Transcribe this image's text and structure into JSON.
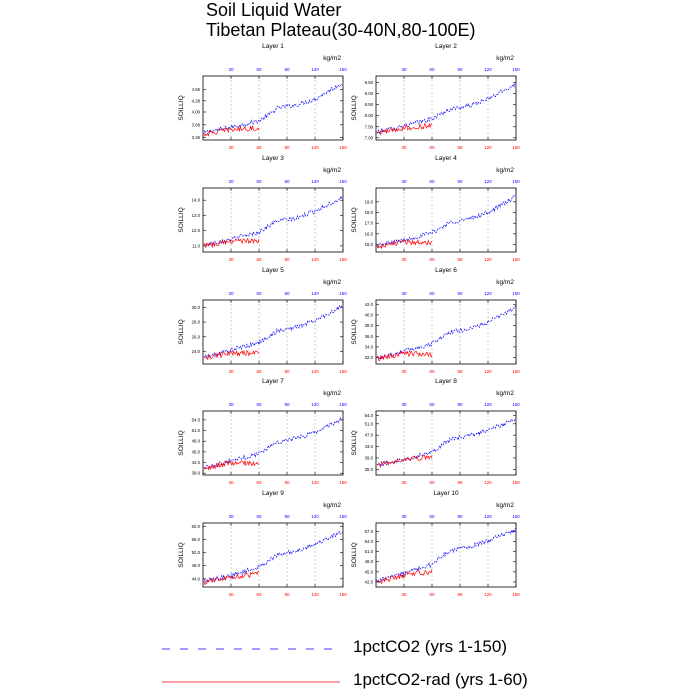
{
  "figure": {
    "title_line1": "Soil Liquid Water",
    "title_line2": "Tibetan Plateau(30-40N,80-100E)"
  },
  "colors": {
    "series1": "#0000ff",
    "series2": "#ff0000",
    "vgrid": "#999999",
    "axis": "#000000"
  },
  "chart_data": [
    {
      "type": "line",
      "title": "Layer 1",
      "unit": "kg/m2",
      "ylabel": "SOILLIQ",
      "xlim": [
        0,
        150
      ],
      "top_x_ticks": [
        30,
        60,
        90,
        120,
        150
      ],
      "bottom_x_ticks": [
        30,
        60,
        90,
        120,
        150
      ],
      "ylim": [
        3.3,
        4.9
      ],
      "yticks": [
        "3.36",
        "3.68",
        "4.00",
        "4.28",
        "4.56"
      ],
      "series": [
        {
          "name": "1pctCO2 (yrs 1-150)",
          "x_range": [
            1,
            150
          ],
          "values_key": [
            [
              1,
              3.48
            ],
            [
              30,
              3.62
            ],
            [
              60,
              3.78
            ],
            [
              70,
              3.92
            ],
            [
              80,
              4.1
            ],
            [
              100,
              4.18
            ],
            [
              120,
              4.32
            ],
            [
              150,
              4.74
            ]
          ]
        },
        {
          "name": "1pctCO2-rad (yrs 1-60)",
          "x_range": [
            1,
            60
          ],
          "values_key": [
            [
              1,
              3.45
            ],
            [
              30,
              3.56
            ],
            [
              60,
              3.6
            ]
          ]
        }
      ]
    },
    {
      "type": "line",
      "title": "Layer 2",
      "unit": "kg/m2",
      "ylabel": "SOILLIQ",
      "xlim": [
        0,
        150
      ],
      "top_x_ticks": [
        30,
        60,
        90,
        120,
        150
      ],
      "bottom_x_ticks": [
        30,
        60,
        90,
        120,
        150
      ],
      "ylim": [
        6.9,
        9.8
      ],
      "yticks": [
        "7.00",
        "7.50",
        "8.00",
        "8.50",
        "9.00",
        "9.50"
      ],
      "series": [
        {
          "name": "1pctCO2 (yrs 1-150)",
          "x_range": [
            1,
            150
          ],
          "values_key": [
            [
              1,
              7.25
            ],
            [
              30,
              7.55
            ],
            [
              60,
              7.85
            ],
            [
              70,
              8.1
            ],
            [
              80,
              8.3
            ],
            [
              100,
              8.45
            ],
            [
              120,
              8.75
            ],
            [
              150,
              9.45
            ]
          ]
        },
        {
          "name": "1pctCO2-rad (yrs 1-60)",
          "x_range": [
            1,
            60
          ],
          "values_key": [
            [
              1,
              7.2
            ],
            [
              30,
              7.45
            ],
            [
              60,
              7.55
            ]
          ]
        }
      ]
    },
    {
      "type": "line",
      "title": "Layer 3",
      "unit": "kg/m2",
      "ylabel": "SOILLIQ",
      "xlim": [
        0,
        150
      ],
      "top_x_ticks": [
        30,
        60,
        90,
        120,
        150
      ],
      "bottom_x_ticks": [
        30,
        60,
        90,
        120,
        150
      ],
      "ylim": [
        10.6,
        14.8
      ],
      "yticks": [
        "11.0",
        "12.0",
        "13.0",
        "14.0"
      ],
      "series": [
        {
          "name": "1pctCO2 (yrs 1-150)",
          "x_range": [
            1,
            150
          ],
          "values_key": [
            [
              1,
              11.05
            ],
            [
              30,
              11.45
            ],
            [
              60,
              11.9
            ],
            [
              70,
              12.3
            ],
            [
              80,
              12.65
            ],
            [
              100,
              12.8
            ],
            [
              120,
              13.3
            ],
            [
              150,
              14.2
            ]
          ]
        },
        {
          "name": "1pctCO2-rad (yrs 1-60)",
          "x_range": [
            1,
            60
          ],
          "values_key": [
            [
              1,
              11.0
            ],
            [
              30,
              11.3
            ],
            [
              60,
              11.35
            ]
          ]
        }
      ]
    },
    {
      "type": "line",
      "title": "Layer 4",
      "unit": "kg/m2",
      "ylabel": "SOILLIQ",
      "xlim": [
        0,
        150
      ],
      "top_x_ticks": [
        30,
        60,
        90,
        120,
        150
      ],
      "bottom_x_ticks": [
        30,
        60,
        90,
        120,
        150
      ],
      "ylim": [
        14.3,
        20.3
      ],
      "yticks": [
        "15.0",
        "16.0",
        "17.0",
        "18.0",
        "19.0"
      ],
      "series": [
        {
          "name": "1pctCO2 (yrs 1-150)",
          "x_range": [
            1,
            150
          ],
          "values_key": [
            [
              1,
              14.9
            ],
            [
              30,
              15.4
            ],
            [
              60,
              16.1
            ],
            [
              70,
              16.6
            ],
            [
              80,
              17.1
            ],
            [
              100,
              17.4
            ],
            [
              120,
              18.0
            ],
            [
              150,
              19.5
            ]
          ]
        },
        {
          "name": "1pctCO2-rad (yrs 1-60)",
          "x_range": [
            1,
            60
          ],
          "values_key": [
            [
              1,
              14.8
            ],
            [
              30,
              15.2
            ],
            [
              60,
              15.25
            ]
          ]
        }
      ]
    },
    {
      "type": "line",
      "title": "Layer 5",
      "unit": "kg/m2",
      "ylabel": "SOILLIQ",
      "xlim": [
        0,
        150
      ],
      "top_x_ticks": [
        30,
        60,
        90,
        120,
        150
      ],
      "bottom_x_ticks": [
        30,
        60,
        90,
        120,
        150
      ],
      "ylim": [
        22.3,
        31.0
      ],
      "yticks": [
        "24.0",
        "26.0",
        "28.0",
        "30.0"
      ],
      "series": [
        {
          "name": "1pctCO2 (yrs 1-150)",
          "x_range": [
            1,
            150
          ],
          "values_key": [
            [
              1,
              23.2
            ],
            [
              30,
              24.2
            ],
            [
              60,
              25.2
            ],
            [
              70,
              26.0
            ],
            [
              80,
              26.8
            ],
            [
              100,
              27.3
            ],
            [
              120,
              28.2
            ],
            [
              150,
              30.2
            ]
          ]
        },
        {
          "name": "1pctCO2-rad (yrs 1-60)",
          "x_range": [
            1,
            60
          ],
          "values_key": [
            [
              1,
              23.1
            ],
            [
              30,
              23.8
            ],
            [
              60,
              23.7
            ]
          ]
        }
      ]
    },
    {
      "type": "line",
      "title": "Layer 6",
      "unit": "kg/m2",
      "ylabel": "SOILLIQ",
      "xlim": [
        0,
        150
      ],
      "top_x_ticks": [
        30,
        60,
        90,
        120,
        150
      ],
      "bottom_x_ticks": [
        30,
        60,
        90,
        120,
        150
      ],
      "ylim": [
        30.8,
        42.8
      ],
      "yticks": [
        "32.0",
        "34.0",
        "36.0",
        "38.0",
        "40.0",
        "42.0"
      ],
      "series": [
        {
          "name": "1pctCO2 (yrs 1-150)",
          "x_range": [
            1,
            150
          ],
          "values_key": [
            [
              1,
              31.9
            ],
            [
              30,
              33.2
            ],
            [
              60,
              34.6
            ],
            [
              70,
              35.8
            ],
            [
              80,
              36.8
            ],
            [
              100,
              37.4
            ],
            [
              120,
              38.6
            ],
            [
              150,
              41.5
            ]
          ]
        },
        {
          "name": "1pctCO2-rad (yrs 1-60)",
          "x_range": [
            1,
            60
          ],
          "values_key": [
            [
              1,
              31.8
            ],
            [
              30,
              32.8
            ],
            [
              60,
              32.6
            ]
          ]
        }
      ]
    },
    {
      "type": "line",
      "title": "Layer 7",
      "unit": "kg/m2",
      "ylabel": "SOILLIQ",
      "xlim": [
        0,
        150
      ],
      "top_x_ticks": [
        30,
        60,
        90,
        120,
        150
      ],
      "bottom_x_ticks": [
        30,
        60,
        90,
        120,
        150
      ],
      "ylim": [
        38.5,
        56.5
      ],
      "yticks": [
        "39.0",
        "42.0",
        "45.0",
        "48.0",
        "51.0",
        "54.0"
      ],
      "series": [
        {
          "name": "1pctCO2 (yrs 1-150)",
          "x_range": [
            1,
            150
          ],
          "values_key": [
            [
              1,
              40.5
            ],
            [
              30,
              42.5
            ],
            [
              60,
              44.5
            ],
            [
              70,
              46.3
            ],
            [
              80,
              47.8
            ],
            [
              100,
              48.8
            ],
            [
              120,
              50.5
            ],
            [
              150,
              54.5
            ]
          ]
        },
        {
          "name": "1pctCO2-rad (yrs 1-60)",
          "x_range": [
            1,
            60
          ],
          "values_key": [
            [
              1,
              40.4
            ],
            [
              30,
              42.0
            ],
            [
              60,
              41.8
            ]
          ]
        }
      ]
    },
    {
      "type": "line",
      "title": "Layer 8",
      "unit": "kg/m2",
      "ylabel": "SOILLIQ",
      "xlim": [
        0,
        150
      ],
      "top_x_ticks": [
        30,
        60,
        90,
        120,
        150
      ],
      "bottom_x_ticks": [
        30,
        60,
        90,
        120,
        150
      ],
      "ylim": [
        33.0,
        55.5
      ],
      "yticks": [
        "35.0",
        "39.0",
        "43.0",
        "47.0",
        "51.0",
        "54.0"
      ],
      "series": [
        {
          "name": "1pctCO2 (yrs 1-150)",
          "x_range": [
            1,
            150
          ],
          "values_key": [
            [
              1,
              36.5
            ],
            [
              30,
              38.5
            ],
            [
              60,
              41.2
            ],
            [
              70,
              43.5
            ],
            [
              80,
              45.5
            ],
            [
              100,
              46.8
            ],
            [
              120,
              48.8
            ],
            [
              150,
              52.5
            ]
          ]
        },
        {
          "name": "1pctCO2-rad (yrs 1-60)",
          "x_range": [
            1,
            60
          ],
          "values_key": [
            [
              1,
              36.2
            ],
            [
              30,
              38.4
            ],
            [
              60,
              39.5
            ]
          ]
        }
      ]
    },
    {
      "type": "line",
      "title": "Layer 9",
      "unit": "kg/m2",
      "ylabel": "SOILLIQ",
      "xlim": [
        0,
        150
      ],
      "top_x_ticks": [
        30,
        60,
        90,
        120,
        150
      ],
      "bottom_x_ticks": [
        30,
        60,
        90,
        120,
        150
      ],
      "ylim": [
        41.5,
        61.0
      ],
      "yticks": [
        "44.0",
        "48.0",
        "52.0",
        "56.0",
        "60.0"
      ],
      "series": [
        {
          "name": "1pctCO2 (yrs 1-150)",
          "x_range": [
            1,
            150
          ],
          "values_key": [
            [
              1,
              43.2
            ],
            [
              30,
              45.0
            ],
            [
              60,
              47.5
            ],
            [
              70,
              49.5
            ],
            [
              80,
              51.2
            ],
            [
              100,
              52.5
            ],
            [
              120,
              54.5
            ],
            [
              150,
              58.5
            ]
          ]
        },
        {
          "name": "1pctCO2-rad (yrs 1-60)",
          "x_range": [
            1,
            60
          ],
          "values_key": [
            [
              1,
              43.0
            ],
            [
              30,
              44.6
            ],
            [
              60,
              45.5
            ]
          ]
        }
      ]
    },
    {
      "type": "line",
      "title": "Layer 10",
      "unit": "kg/m2",
      "ylabel": "SOILLIQ",
      "xlim": [
        0,
        150
      ],
      "top_x_ticks": [
        30,
        60,
        90,
        120,
        150
      ],
      "bottom_x_ticks": [
        30,
        60,
        90,
        120,
        150
      ],
      "ylim": [
        40.5,
        59.5
      ],
      "yticks": [
        "42.0",
        "45.0",
        "48.0",
        "51.0",
        "54.0",
        "57.0"
      ],
      "series": [
        {
          "name": "1pctCO2 (yrs 1-150)",
          "x_range": [
            1,
            150
          ],
          "values_key": [
            [
              1,
              42.3
            ],
            [
              30,
              44.5
            ],
            [
              60,
              47.2
            ],
            [
              70,
              49.5
            ],
            [
              80,
              51.2
            ],
            [
              100,
              52.4
            ],
            [
              120,
              54.2
            ],
            [
              150,
              57.5
            ]
          ]
        },
        {
          "name": "1pctCO2-rad (yrs 1-60)",
          "x_range": [
            1,
            60
          ],
          "values_key": [
            [
              1,
              42.0
            ],
            [
              30,
              44.0
            ],
            [
              60,
              45.2
            ]
          ]
        }
      ]
    }
  ],
  "legend": {
    "items": [
      {
        "label": "1pctCO2 (yrs 1-150)",
        "color": "#0000ff",
        "style": "dashed"
      },
      {
        "label": "1pctCO2-rad (yrs 1-60)",
        "color": "#ff0000",
        "style": "solid"
      }
    ]
  }
}
